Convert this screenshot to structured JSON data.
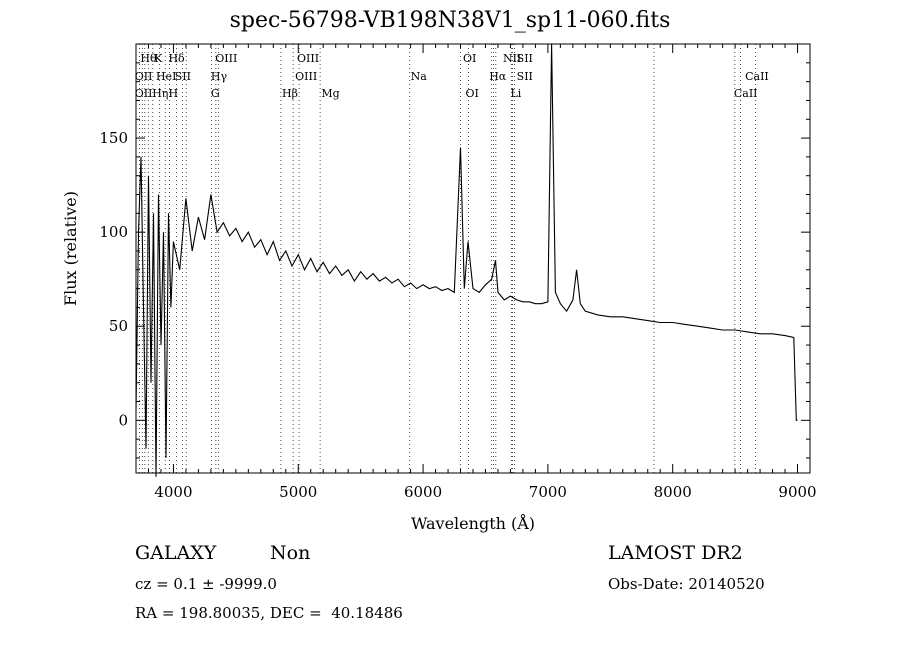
{
  "chart_data": {
    "type": "line",
    "title": "spec-56798-VB198N38V1_sp11-060.fits",
    "xlabel": "Wavelength (Å)",
    "ylabel": "Flux (relative)",
    "xlim": [
      3700,
      9100
    ],
    "ylim": [
      -28,
      200
    ],
    "xticks": [
      4000,
      5000,
      6000,
      7000,
      8000,
      9000
    ],
    "yticks": [
      0,
      50,
      100,
      150
    ],
    "grid": false,
    "line_color": "#000000",
    "series": [
      {
        "x": [
          3700,
          3720,
          3740,
          3760,
          3780,
          3800,
          3820,
          3840,
          3860,
          3880,
          3900,
          3920,
          3940,
          3960,
          3980,
          4000,
          4050,
          4100,
          4150,
          4200,
          4250,
          4300,
          4350,
          4400,
          4450,
          4500,
          4550,
          4600,
          4650,
          4700,
          4750,
          4800,
          4850,
          4900,
          4950,
          5000,
          5050,
          5100,
          5150,
          5200,
          5250,
          5300,
          5350,
          5400,
          5450,
          5500,
          5550,
          5600,
          5650,
          5700,
          5750,
          5800,
          5850,
          5900,
          5950,
          6000,
          6050,
          6100,
          6150,
          6200,
          6250,
          6300,
          6330,
          6360,
          6400,
          6450,
          6500,
          6550,
          6580,
          6600,
          6650,
          6700,
          6750,
          6800,
          6850,
          6900,
          6950,
          7000,
          7030,
          7060,
          7100,
          7150,
          7200,
          7230,
          7260,
          7300,
          7400,
          7500,
          7600,
          7700,
          7800,
          7900,
          8000,
          8100,
          8200,
          8300,
          8400,
          8500,
          8600,
          8700,
          8800,
          8900,
          8970,
          8990,
          9000
        ],
        "y": [
          5,
          100,
          140,
          60,
          -15,
          130,
          20,
          110,
          -30,
          120,
          40,
          100,
          -20,
          110,
          60,
          95,
          80,
          118,
          90,
          108,
          96,
          120,
          100,
          105,
          98,
          102,
          95,
          100,
          92,
          96,
          88,
          95,
          85,
          90,
          82,
          88,
          80,
          86,
          79,
          84,
          78,
          82,
          77,
          80,
          74,
          79,
          75,
          78,
          74,
          76,
          73,
          75,
          71,
          73,
          70,
          72,
          70,
          71,
          69,
          70,
          68,
          145,
          70,
          95,
          70,
          68,
          72,
          75,
          85,
          68,
          64,
          66,
          64,
          63,
          63,
          62,
          62,
          63,
          200,
          68,
          62,
          58,
          64,
          80,
          62,
          58,
          56,
          55,
          55,
          54,
          53,
          52,
          52,
          51,
          50,
          49,
          48,
          48,
          47,
          46,
          46,
          45,
          44,
          0,
          0
        ]
      }
    ],
    "annotations": {
      "top_row": [
        "Hθ",
        "K",
        "Hδ",
        "OIII",
        "OIII",
        "OI",
        "NII",
        "SII"
      ],
      "middle_row": [
        "OII",
        "HeI",
        "SII",
        "Hγ",
        "OIII",
        "Na",
        "Hα",
        "SII",
        "CaII"
      ],
      "bottom_row": [
        "OII",
        "Hη",
        "H",
        "G",
        "Hβ",
        "Mg",
        "OI",
        "Li",
        "CaII"
      ]
    }
  },
  "info": {
    "object_class": "GALAXY",
    "subclass": "Non",
    "cz": "cz = 0.1 ± -9999.0",
    "coords": "RA = 198.80035, DEC =  40.18486",
    "survey": "LAMOST DR2",
    "obs_date": "Obs-Date: 20140520"
  }
}
